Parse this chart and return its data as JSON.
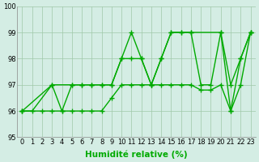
{
  "series": [
    {
      "x": [
        0,
        1,
        3,
        4,
        5,
        6,
        7,
        8,
        9,
        10,
        11,
        12,
        13,
        14,
        15,
        16,
        17,
        18,
        19,
        20,
        21,
        22,
        23
      ],
      "y": [
        96,
        96,
        97,
        96,
        97,
        97,
        97,
        97,
        97,
        98,
        99,
        98,
        97,
        98,
        99,
        99,
        99,
        97,
        97,
        99,
        96,
        98,
        99
      ]
    },
    {
      "x": [
        0,
        3,
        5,
        6,
        7,
        8,
        9,
        10,
        11,
        12,
        13,
        14,
        15,
        16,
        17,
        20,
        21,
        22,
        23
      ],
      "y": [
        96,
        97,
        97,
        97,
        97,
        97,
        97,
        98,
        98,
        98,
        97,
        98,
        99,
        99,
        99,
        99,
        97,
        98,
        99
      ]
    },
    {
      "x": [
        0,
        2,
        3,
        4,
        5,
        6,
        7,
        8,
        9,
        10,
        11,
        12,
        13,
        14,
        15,
        16,
        17,
        18,
        19,
        20,
        21,
        22,
        23
      ],
      "y": [
        96,
        96,
        96,
        96,
        96,
        96,
        96,
        96,
        96.5,
        97,
        97,
        97,
        97,
        97,
        97,
        97,
        97,
        96.8,
        96.8,
        97,
        96,
        97,
        99
      ]
    }
  ],
  "line_color": "#00aa00",
  "marker_color": "#00aa00",
  "bg_color": "#d4ede4",
  "grid_color": "#a0c8a8",
  "ylim": [
    95,
    100
  ],
  "xlim": [
    -0.5,
    23.5
  ],
  "xlabel": "Humidité relative (%)",
  "yticks": [
    95,
    96,
    97,
    98,
    99,
    100
  ],
  "xticks": [
    0,
    1,
    2,
    3,
    4,
    5,
    6,
    7,
    8,
    9,
    10,
    11,
    12,
    13,
    14,
    15,
    16,
    17,
    18,
    19,
    20,
    21,
    22,
    23
  ],
  "xlabel_fontsize": 7.5,
  "tick_fontsize": 6,
  "marker_size": 4,
  "line_width": 1.0
}
